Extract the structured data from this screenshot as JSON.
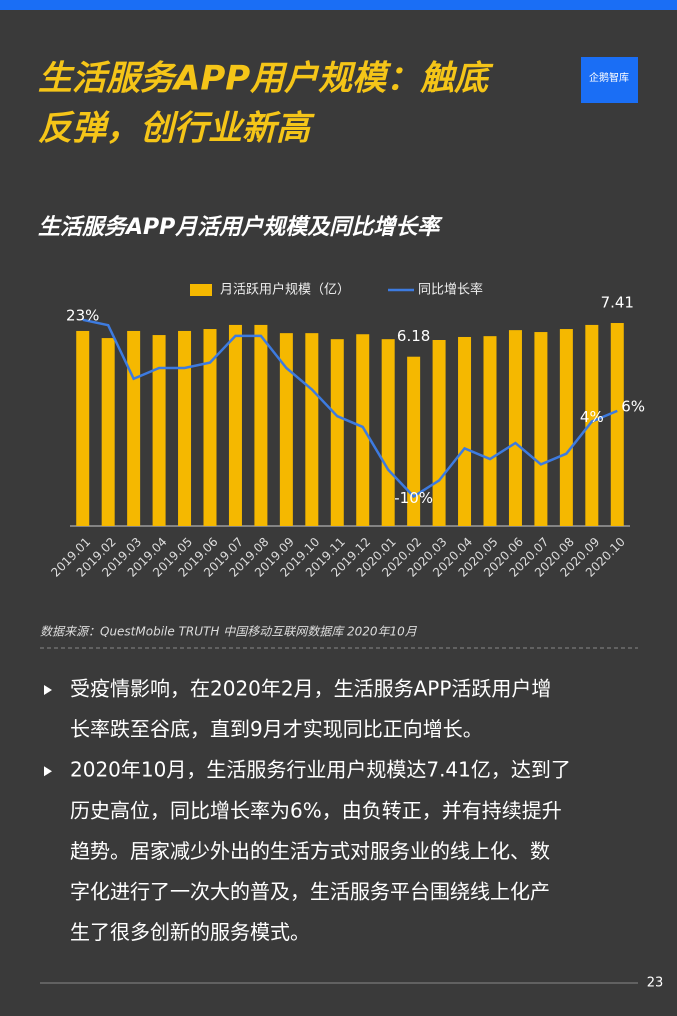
{
  "header": {
    "title_lines": [
      "生活服务APP用户规模：触底",
      "反弹，创行业新高"
    ],
    "logo": "企鹅智库"
  },
  "chart_data": {
    "type": "bar",
    "title": "生活服务APP月活用户规模及同比增长率",
    "categories": [
      "2019.01",
      "2019.02",
      "2019.03",
      "2019.04",
      "2019.05",
      "2019.06",
      "2019.07",
      "2019.08",
      "2019.09",
      "2019.10",
      "2019.11",
      "2019.12",
      "2020.01",
      "2020.02",
      "2020.03",
      "2020.04",
      "2020.05",
      "2020.06",
      "2020.07",
      "2020.08",
      "2020.09",
      "2020.10"
    ],
    "series": [
      {
        "name": "月活跃用户规模（亿）",
        "type": "bar",
        "color": "#f5b800",
        "values": [
          7.12,
          6.86,
          7.12,
          6.97,
          7.12,
          7.19,
          7.34,
          7.34,
          7.04,
          7.04,
          6.82,
          7.0,
          6.82,
          6.18,
          6.79,
          6.9,
          6.93,
          7.15,
          7.08,
          7.19,
          7.34,
          7.41
        ],
        "value_labels": [
          null,
          null,
          null,
          null,
          null,
          null,
          null,
          null,
          null,
          null,
          null,
          null,
          null,
          "6.18",
          null,
          null,
          null,
          null,
          null,
          null,
          null,
          "7.41"
        ]
      },
      {
        "name": "同比增长率",
        "type": "line",
        "axis": "y2",
        "color": "#3d7be0",
        "values": [
          23,
          22,
          12,
          14,
          14,
          15,
          20,
          20,
          14,
          10,
          5,
          3,
          -5,
          -10,
          -7,
          -1,
          -3,
          0,
          -4,
          -2,
          4,
          6
        ],
        "value_labels": [
          "23%",
          null,
          null,
          null,
          null,
          null,
          null,
          null,
          null,
          null,
          null,
          null,
          null,
          "-10%",
          null,
          null,
          null,
          null,
          null,
          null,
          "4%",
          "6%"
        ]
      }
    ],
    "ylim": [
      0,
      8.25
    ],
    "y2lim": [
      -15.5,
      26.7
    ]
  },
  "source": "数据来源：QuestMobile TRUTH 中国移动互联网数据库 2020年10月",
  "bullets": [
    {
      "lines": [
        "受疫情影响，在2020年2月，生活服务APP活跃用户增",
        "长率跌至谷底，直到9月才实现同比正向增长。"
      ]
    },
    {
      "lines": [
        "2020年10月，生活服务行业用户规模达7.41亿，达到了",
        "历史高位，同比增长率为6%，由负转正，并有持续提升",
        "趋势。居家减少外出的生活方式对服务业的线上化、数",
        "字化进行了一次大的普及，生活服务平台围绕线上化产",
        "生了很多创新的服务模式。"
      ]
    }
  ],
  "page_number": "23"
}
